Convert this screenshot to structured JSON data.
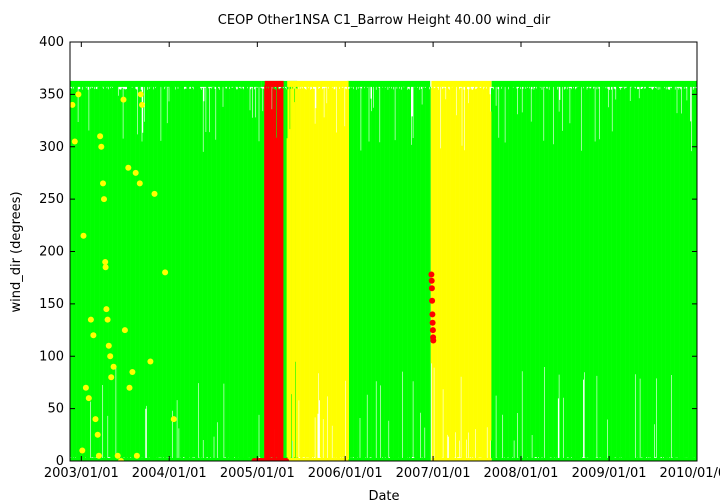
{
  "chart_data": {
    "type": "scatter",
    "title": "CEOP Other1NSA C1_Barrow Height 40.00 wind_dir",
    "xlabel": "Date",
    "ylabel": "wind_dir (degrees)",
    "xlim": [
      "2002-11-15",
      "2010-01-01"
    ],
    "ylim": [
      0,
      400
    ],
    "xticks": [
      "2003/01/01",
      "2004/01/01",
      "2005/01/01",
      "2006/01/01",
      "2007/01/01",
      "2008/01/01",
      "2009/01/01",
      "2010/01/01"
    ],
    "yticks": [
      0,
      50,
      100,
      150,
      200,
      250,
      300,
      350,
      400
    ],
    "grid": false,
    "legend": "none",
    "colors": {
      "good": "#00ff00",
      "questionable": "#ffff00",
      "bad": "#ff0000",
      "axis": "#000000"
    },
    "series": [
      {
        "color": "#00ff00",
        "coverage": "near-continuous, values 0–360",
        "bands": [
          [
            "2002-11-15",
            "2005-01-20"
          ],
          [
            "2005-01-20",
            "2005-06-15"
          ],
          [
            "2006-01-10",
            "2006-12-20"
          ],
          [
            "2007-09-01",
            "2009-12-31"
          ]
        ]
      },
      {
        "color": "#ffff00",
        "coverage": "dense bands, values 0–360",
        "bands": [
          [
            "2005-05-05",
            "2006-01-15"
          ],
          [
            "2006-12-25",
            "2007-08-31"
          ]
        ],
        "points": [
          [
            "2002-11-25",
            340
          ],
          [
            "2002-12-05",
            305
          ],
          [
            "2002-12-20",
            350
          ],
          [
            "2003-01-05",
            10
          ],
          [
            "2003-01-10",
            215
          ],
          [
            "2003-01-20",
            70
          ],
          [
            "2003-02-01",
            60
          ],
          [
            "2003-02-10",
            135
          ],
          [
            "2003-02-20",
            120
          ],
          [
            "2003-03-01",
            40
          ],
          [
            "2003-03-10",
            25
          ],
          [
            "2003-03-15",
            5
          ],
          [
            "2003-03-20",
            310
          ],
          [
            "2003-03-25",
            300
          ],
          [
            "2003-04-01",
            265
          ],
          [
            "2003-04-05",
            250
          ],
          [
            "2003-04-10",
            190
          ],
          [
            "2003-04-12",
            185
          ],
          [
            "2003-04-15",
            145
          ],
          [
            "2003-04-20",
            135
          ],
          [
            "2003-04-25",
            110
          ],
          [
            "2003-05-01",
            100
          ],
          [
            "2003-05-05",
            80
          ],
          [
            "2003-05-15",
            90
          ],
          [
            "2003-06-01",
            5
          ],
          [
            "2003-06-15",
            0
          ],
          [
            "2003-07-01",
            125
          ],
          [
            "2003-07-15",
            280
          ],
          [
            "2003-07-20",
            70
          ],
          [
            "2003-08-01",
            85
          ],
          [
            "2003-08-15",
            275
          ],
          [
            "2003-09-01",
            265
          ],
          [
            "2003-09-05",
            350
          ],
          [
            "2003-09-10",
            340
          ],
          [
            "2003-10-15",
            95
          ],
          [
            "2003-11-01",
            255
          ],
          [
            "2003-12-15",
            180
          ],
          [
            "2004-01-20",
            40
          ],
          [
            "2003-06-25",
            345
          ],
          [
            "2003-08-20",
            5
          ]
        ]
      },
      {
        "color": "#ff0000",
        "coverage": "dense band, values 0–360",
        "bands": [
          [
            "2005-02-01",
            "2005-04-20"
          ]
        ],
        "points": [
          [
            "2004-12-20",
            0
          ],
          [
            "2005-01-01",
            0
          ],
          [
            "2005-01-10",
            0
          ],
          [
            "2005-01-15",
            0
          ],
          [
            "2005-01-25",
            0
          ],
          [
            "2005-04-25",
            0
          ],
          [
            "2005-05-01",
            0
          ],
          [
            "2006-12-25",
            178
          ],
          [
            "2006-12-26",
            172
          ],
          [
            "2006-12-27",
            165
          ],
          [
            "2006-12-28",
            153
          ],
          [
            "2006-12-29",
            140
          ],
          [
            "2006-12-30",
            132
          ],
          [
            "2006-12-31",
            125
          ],
          [
            "2007-01-01",
            118
          ],
          [
            "2007-01-02",
            115
          ]
        ]
      }
    ]
  }
}
